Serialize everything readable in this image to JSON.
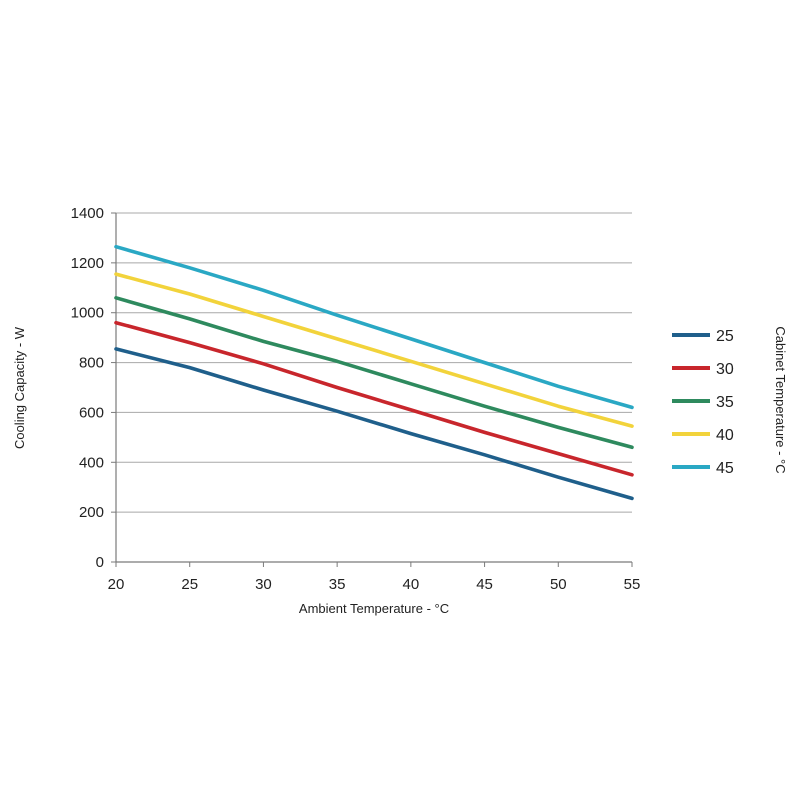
{
  "chart_data": {
    "type": "line",
    "title": "",
    "xlabel": "Ambient Temperature - °C",
    "ylabel": "Cooling Capacity - W",
    "legend_title": "Cabinet Temperature - °C",
    "legend_position": "right",
    "grid": "horizontal",
    "xlim": [
      20,
      55
    ],
    "ylim": [
      0,
      1400
    ],
    "x_ticks": [
      20,
      25,
      30,
      35,
      40,
      45,
      50,
      55
    ],
    "y_ticks": [
      0,
      200,
      400,
      600,
      800,
      1000,
      1200,
      1400
    ],
    "x": [
      20,
      25,
      30,
      35,
      40,
      45,
      50,
      55
    ],
    "series": [
      {
        "name": "25",
        "color": "#1f5f8b",
        "values": [
          855,
          780,
          690,
          605,
          515,
          430,
          340,
          255
        ]
      },
      {
        "name": "30",
        "color": "#c8262c",
        "values": [
          960,
          880,
          795,
          700,
          610,
          520,
          435,
          350
        ]
      },
      {
        "name": "35",
        "color": "#2e8a5e",
        "values": [
          1060,
          975,
          885,
          805,
          715,
          625,
          540,
          460
        ]
      },
      {
        "name": "40",
        "color": "#f2d33b",
        "values": [
          1155,
          1075,
          985,
          895,
          805,
          715,
          625,
          545
        ]
      },
      {
        "name": "45",
        "color": "#2aa8c4",
        "values": [
          1265,
          1180,
          1090,
          990,
          895,
          800,
          705,
          620
        ]
      }
    ]
  }
}
